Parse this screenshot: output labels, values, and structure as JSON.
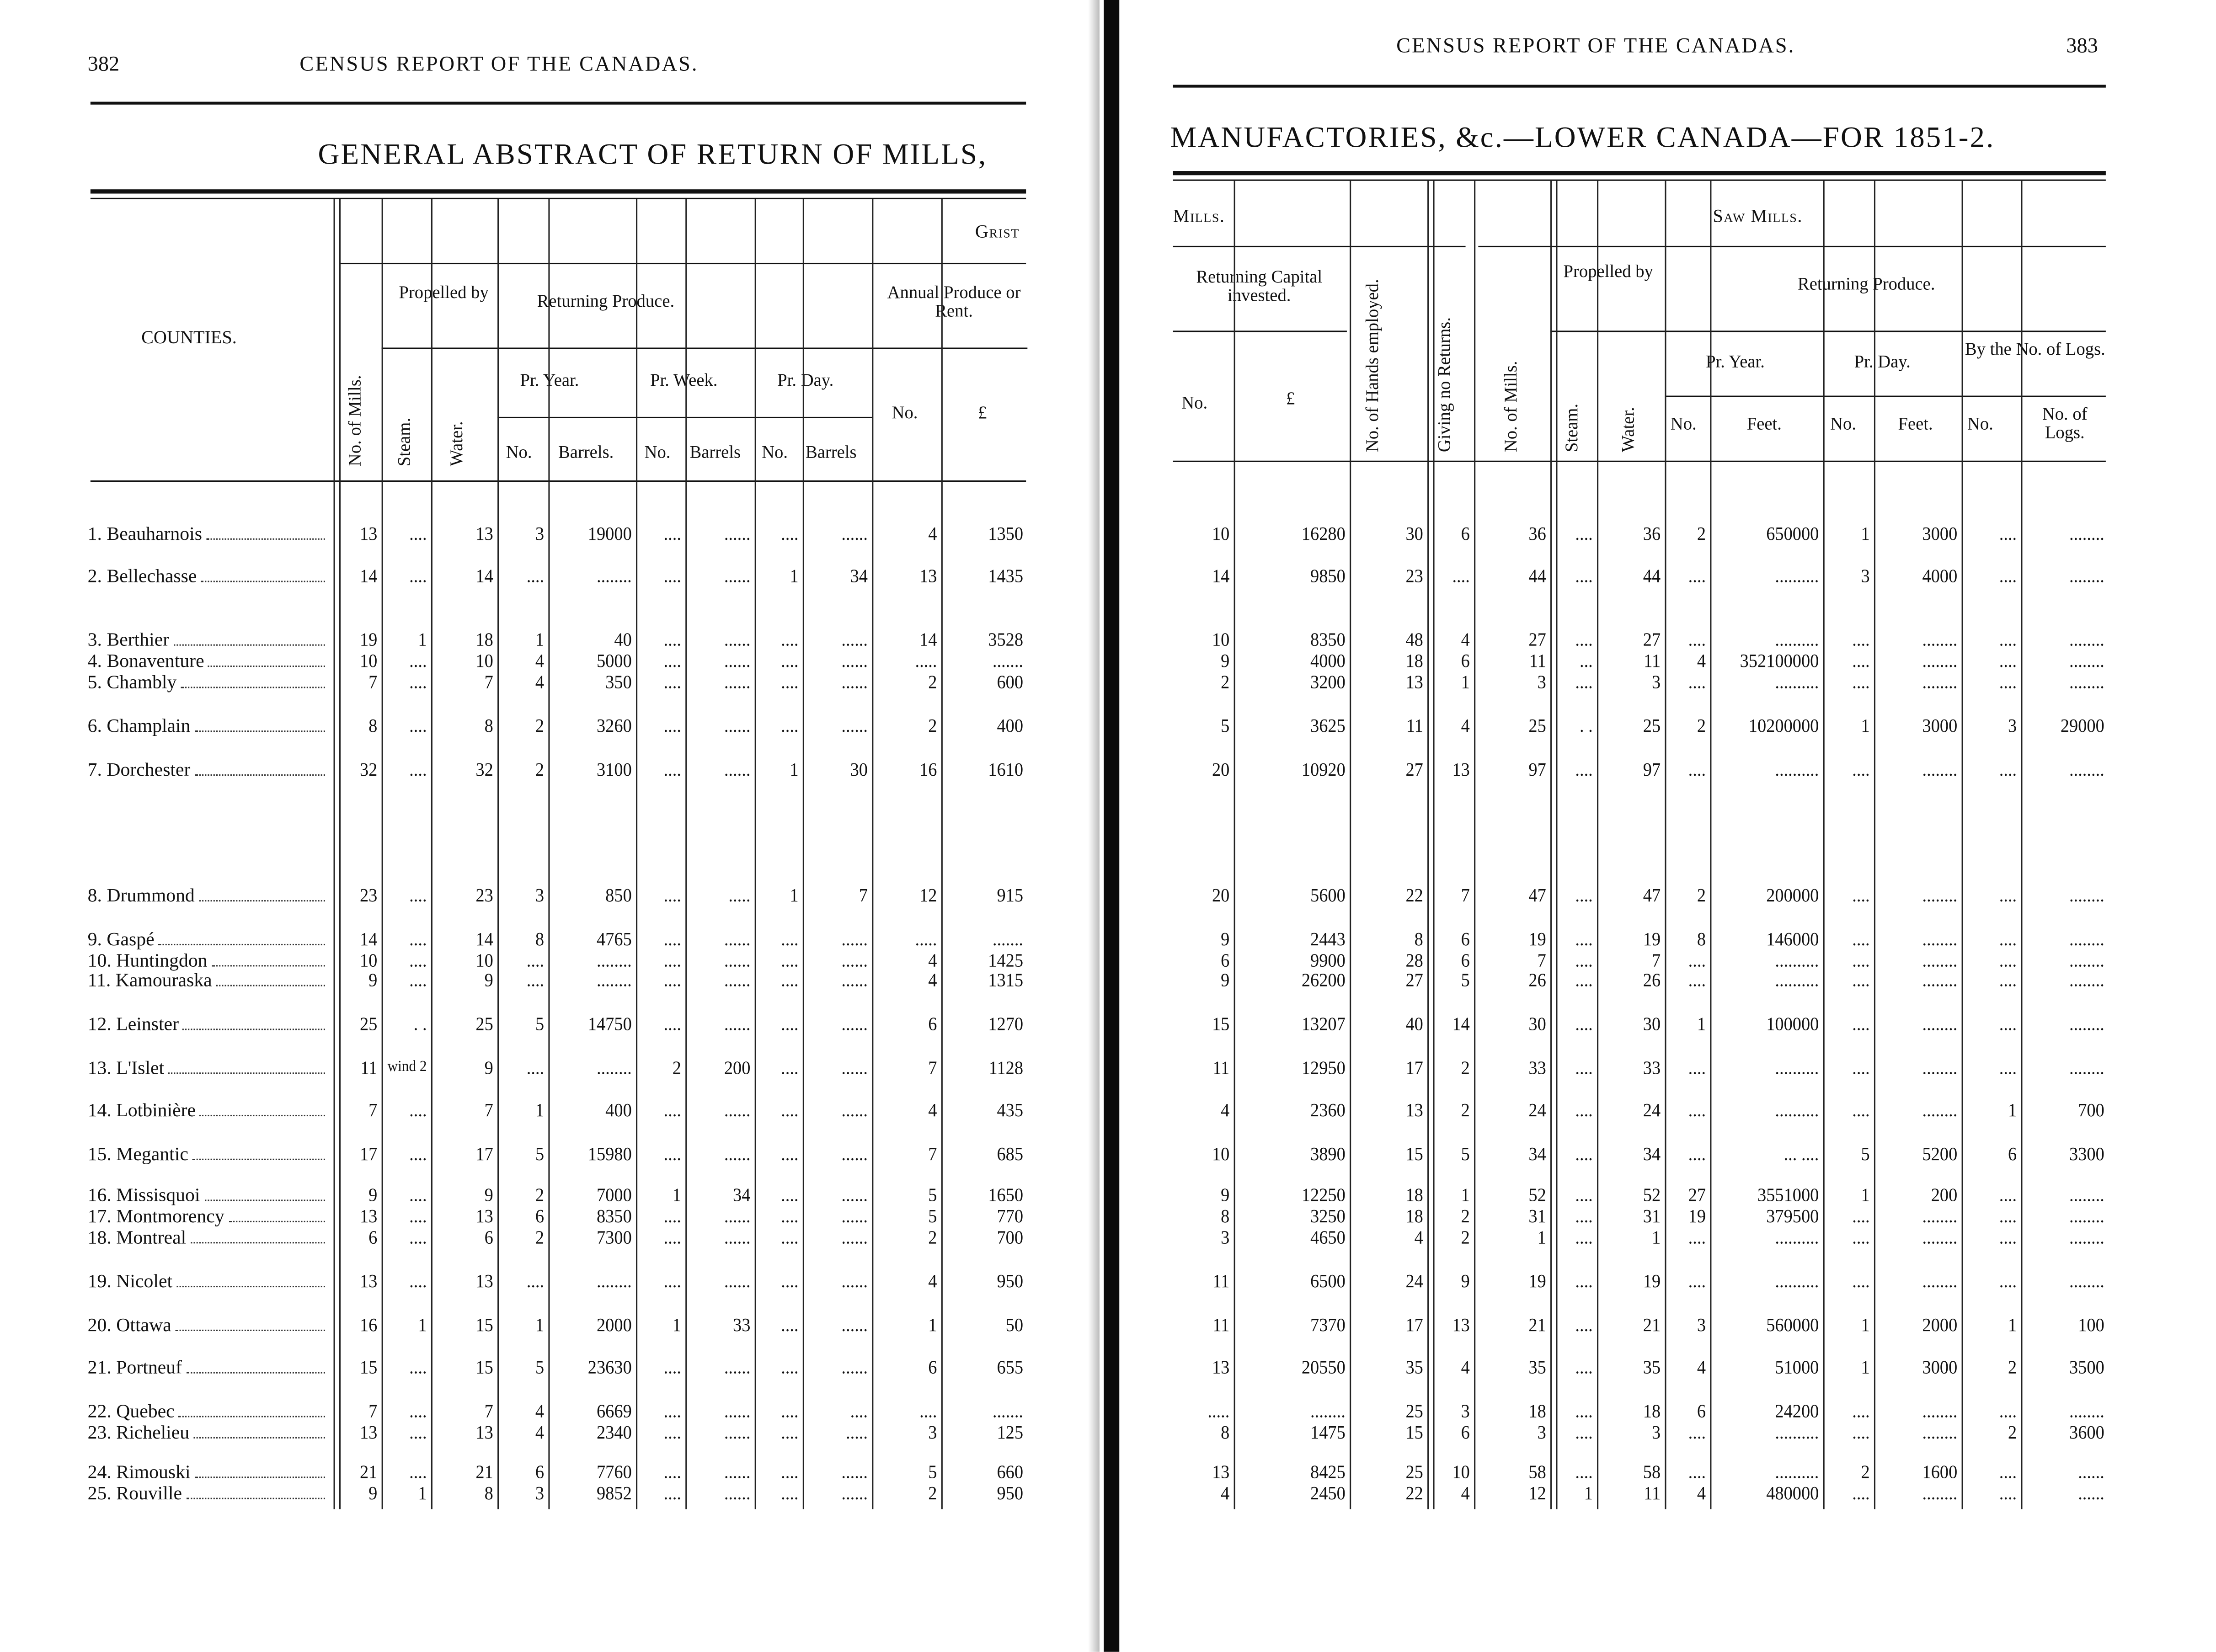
{
  "left_page": {
    "page_number": "382",
    "running_head": "CENSUS REPORT OF THE CANADAS.",
    "title": "GENERAL ABSTRACT OF RETURN OF MILLS,",
    "group_header": "Grist",
    "headers": {
      "counties": "COUNTIES.",
      "no_of_mills": "No. of Mills.",
      "propelled_by": "Propelled by",
      "steam": "Steam.",
      "water": "Water.",
      "returning_produce": "Returning Produce.",
      "pr_year": "Pr. Year.",
      "pr_week": "Pr. Week.",
      "pr_day": "Pr. Day.",
      "no": "No.",
      "barrels": "Barrels.",
      "barrels_short": "Barrels",
      "annual_produce": "Annual Produce or Rent.",
      "pound": "£"
    },
    "rows": [
      {
        "county": "1. Beauharnois",
        "values": [
          "13",
          "....",
          "13",
          "3",
          "19000",
          "....",
          "......",
          "....",
          "......",
          "4",
          "1350"
        ]
      },
      {
        "county": "2. Bellechasse",
        "values": [
          "14",
          "....",
          "14",
          "....",
          "........",
          "....",
          "......",
          "1",
          "34",
          "13",
          "1435"
        ]
      },
      {
        "county": "3. Berthier",
        "values": [
          "19",
          "1",
          "18",
          "1",
          "40",
          "....",
          "......",
          "....",
          "......",
          "14",
          "3528"
        ]
      },
      {
        "county": "4. Bonaventure",
        "values": [
          "10",
          "....",
          "10",
          "4",
          "5000",
          "....",
          "......",
          "....",
          "......",
          ".....",
          "......."
        ]
      },
      {
        "county": "5. Chambly",
        "values": [
          "7",
          "....",
          "7",
          "4",
          "350",
          "....",
          "......",
          "....",
          "......",
          "2",
          "600"
        ]
      },
      {
        "county": "6. Champlain",
        "values": [
          "8",
          "....",
          "8",
          "2",
          "3260",
          "....",
          "......",
          "....",
          "......",
          "2",
          "400"
        ]
      },
      {
        "county": "7. Dorchester",
        "values": [
          "32",
          "....",
          "32",
          "2",
          "3100",
          "....",
          "......",
          "1",
          "30",
          "16",
          "1610"
        ]
      },
      {
        "county": "8. Drummond",
        "values": [
          "23",
          "....",
          "23",
          "3",
          "850",
          "....",
          ".....",
          "1",
          "7",
          "12",
          "915"
        ]
      },
      {
        "county": "9. Gaspé",
        "values": [
          "14",
          "....",
          "14",
          "8",
          "4765",
          "....",
          "......",
          "....",
          "......",
          ".....",
          "......."
        ]
      },
      {
        "county": "10. Huntingdon",
        "values": [
          "10",
          "....",
          "10",
          "....",
          "........",
          "....",
          "......",
          "....",
          "......",
          "4",
          "1425"
        ]
      },
      {
        "county": "11. Kamouraska",
        "values": [
          "9",
          "....",
          "9",
          "....",
          "........",
          "....",
          "......",
          "....",
          "......",
          "4",
          "1315"
        ]
      },
      {
        "county": "12. Leinster",
        "values": [
          "25",
          ". .",
          "25",
          "5",
          "14750",
          "....",
          "......",
          "....",
          "......",
          "6",
          "1270"
        ]
      },
      {
        "county": "13. L'Islet",
        "values": [
          "11",
          "wind 2",
          "9",
          "....",
          "........",
          "2",
          "200",
          "....",
          "......",
          "7",
          "1128"
        ]
      },
      {
        "county": "14. Lotbinière",
        "values": [
          "7",
          "....",
          "7",
          "1",
          "400",
          "....",
          "......",
          "....",
          "......",
          "4",
          "435"
        ]
      },
      {
        "county": "15. Megantic",
        "values": [
          "17",
          "....",
          "17",
          "5",
          "15980",
          "....",
          "......",
          "....",
          "......",
          "7",
          "685"
        ]
      },
      {
        "county": "16. Missisquoi",
        "values": [
          "9",
          "....",
          "9",
          "2",
          "7000",
          "1",
          "34",
          "....",
          "......",
          "5",
          "1650"
        ]
      },
      {
        "county": "17. Montmorency",
        "values": [
          "13",
          "....",
          "13",
          "6",
          "8350",
          "....",
          "......",
          "....",
          "......",
          "5",
          "770"
        ]
      },
      {
        "county": "18. Montreal",
        "values": [
          "6",
          "....",
          "6",
          "2",
          "7300",
          "....",
          "......",
          "....",
          "......",
          "2",
          "700"
        ]
      },
      {
        "county": "19. Nicolet",
        "values": [
          "13",
          "....",
          "13",
          "....",
          "........",
          "....",
          "......",
          "....",
          "......",
          "4",
          "950"
        ]
      },
      {
        "county": "20. Ottawa",
        "values": [
          "16",
          "1",
          "15",
          "1",
          "2000",
          "1",
          "33",
          "....",
          "......",
          "1",
          "50"
        ]
      },
      {
        "county": "21. Portneuf",
        "values": [
          "15",
          "....",
          "15",
          "5",
          "23630",
          "....",
          "......",
          "....",
          "......",
          "6",
          "655"
        ]
      },
      {
        "county": "22. Quebec",
        "values": [
          "7",
          "....",
          "7",
          "4",
          "6669",
          "....",
          "......",
          "....",
          "....",
          "....",
          "......."
        ]
      },
      {
        "county": "23. Richelieu",
        "values": [
          "13",
          "....",
          "13",
          "4",
          "2340",
          "....",
          "......",
          "....",
          ".....",
          "3",
          "125"
        ]
      },
      {
        "county": "24. Rimouski",
        "values": [
          "21",
          "....",
          "21",
          "6",
          "7760",
          "....",
          "......",
          "....",
          "......",
          "5",
          "660"
        ]
      },
      {
        "county": "25. Rouville",
        "values": [
          "9",
          "1",
          "8",
          "3",
          "9852",
          "....",
          "......",
          "....",
          "......",
          "2",
          "950"
        ]
      }
    ]
  },
  "right_page": {
    "page_number": "383",
    "running_head": "CENSUS REPORT OF THE CANADAS.",
    "title": "MANUFACTORIES, &c.—LOWER CANADA—FOR 1851-2.",
    "group_mills": "Mills.",
    "group_saw_mills": "Saw Mills.",
    "headers": {
      "returning_capital": "Returning Capital invested.",
      "no": "No.",
      "pound": "£",
      "hands": "No. of Hands employed.",
      "giving_no_returns": "Giving no Returns.",
      "no_of_mills": "No. of Mills.",
      "propelled_by": "Propelled by",
      "steam": "Steam.",
      "water": "Water.",
      "returning_produce": "Returning Produce.",
      "pr_year": "Pr. Year.",
      "pr_day": "Pr. Day.",
      "by_logs": "By the No. of Logs.",
      "feet": "Feet.",
      "no_of_logs": "No. of Logs."
    },
    "rows": [
      [
        "10",
        "16280",
        "30",
        "6",
        "36",
        "....",
        "36",
        "2",
        "650000",
        "1",
        "3000",
        "....",
        "........"
      ],
      [
        "14",
        "9850",
        "23",
        "....",
        "44",
        "....",
        "44",
        "....",
        "..........",
        "3",
        "4000",
        "....",
        "........"
      ],
      [
        "10",
        "8350",
        "48",
        "4",
        "27",
        "....",
        "27",
        "....",
        "..........",
        "....",
        "........",
        "....",
        "........"
      ],
      [
        "9",
        "4000",
        "18",
        "6",
        "11",
        "...",
        "11",
        "4",
        "352100000",
        "....",
        "........",
        "....",
        "........"
      ],
      [
        "2",
        "3200",
        "13",
        "1",
        "3",
        "....",
        "3",
        "....",
        "..........",
        "....",
        "........",
        "....",
        "........"
      ],
      [
        "5",
        "3625",
        "11",
        "4",
        "25",
        ". .",
        "25",
        "2",
        "10200000",
        "1",
        "3000",
        "3",
        "29000"
      ],
      [
        "20",
        "10920",
        "27",
        "13",
        "97",
        "....",
        "97",
        "....",
        "..........",
        "....",
        "........",
        "....",
        "........"
      ],
      [
        "20",
        "5600",
        "22",
        "7",
        "47",
        "....",
        "47",
        "2",
        "200000",
        "....",
        "........",
        "....",
        "........"
      ],
      [
        "9",
        "2443",
        "8",
        "6",
        "19",
        "....",
        "19",
        "8",
        "146000",
        "....",
        "........",
        "....",
        "........"
      ],
      [
        "6",
        "9900",
        "28",
        "6",
        "7",
        "....",
        "7",
        "....",
        "..........",
        "....",
        "........",
        "....",
        "........"
      ],
      [
        "9",
        "26200",
        "27",
        "5",
        "26",
        "....",
        "26",
        "....",
        "..........",
        "....",
        "........",
        "....",
        "........"
      ],
      [
        "15",
        "13207",
        "40",
        "14",
        "30",
        "....",
        "30",
        "1",
        "100000",
        "....",
        "........",
        "....",
        "........"
      ],
      [
        "11",
        "12950",
        "17",
        "2",
        "33",
        "....",
        "33",
        "....",
        "..........",
        "....",
        "........",
        "....",
        "........"
      ],
      [
        "4",
        "2360",
        "13",
        "2",
        "24",
        "....",
        "24",
        "....",
        "..........",
        "....",
        "........",
        "1",
        "700"
      ],
      [
        "10",
        "3890",
        "15",
        "5",
        "34",
        "....",
        "34",
        "....",
        "... ....",
        "5",
        "5200",
        "6",
        "3300"
      ],
      [
        "9",
        "12250",
        "18",
        "1",
        "52",
        "....",
        "52",
        "27",
        "3551000",
        "1",
        "200",
        "....",
        "........"
      ],
      [
        "8",
        "3250",
        "18",
        "2",
        "31",
        "....",
        "31",
        "19",
        "379500",
        "....",
        "........",
        "....",
        "........"
      ],
      [
        "3",
        "4650",
        "4",
        "2",
        "1",
        "....",
        "1",
        "....",
        "..........",
        "....",
        "........",
        "....",
        "........"
      ],
      [
        "11",
        "6500",
        "24",
        "9",
        "19",
        "....",
        "19",
        "....",
        "..........",
        "....",
        "........",
        "....",
        "........"
      ],
      [
        "11",
        "7370",
        "17",
        "13",
        "21",
        "....",
        "21",
        "3",
        "560000",
        "1",
        "2000",
        "1",
        "100"
      ],
      [
        "13",
        "20550",
        "35",
        "4",
        "35",
        "....",
        "35",
        "4",
        "51000",
        "1",
        "3000",
        "2",
        "3500"
      ],
      [
        ".....",
        "........",
        "25",
        "3",
        "18",
        "....",
        "18",
        "6",
        "24200",
        "....",
        "........",
        "....",
        "........"
      ],
      [
        "8",
        "1475",
        "15",
        "6",
        "3",
        "....",
        "3",
        "....",
        "..........",
        "....",
        "........",
        "2",
        "3600"
      ],
      [
        "13",
        "8425",
        "25",
        "10",
        "58",
        "....",
        "58",
        "....",
        "..........",
        "2",
        "1600",
        "....",
        "......"
      ],
      [
        "4",
        "2450",
        "22",
        "4",
        "12",
        "1",
        "11",
        "4",
        "480000",
        "....",
        "........",
        "....",
        "......"
      ]
    ]
  }
}
